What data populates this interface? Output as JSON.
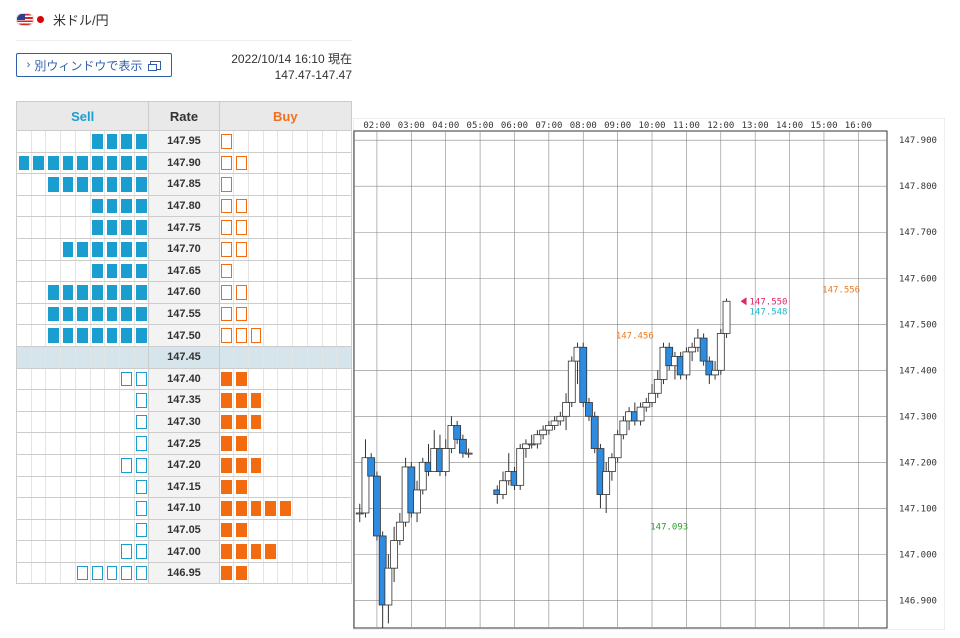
{
  "header": {
    "flag_icons": [
      "us-flag-icon",
      "jp-flag-icon"
    ],
    "title": "米ドル/円"
  },
  "toolbar": {
    "window_button_label": "別ウィンドウで表示",
    "window_button_icons": [
      "chevron-right-icon",
      "new-window-icon"
    ]
  },
  "timestamp": {
    "datetime": "2022/10/14 16:10 現在",
    "range": "147.47-147.47"
  },
  "orderbook": {
    "headers": {
      "sell": "Sell",
      "rate": "Rate",
      "buy": "Buy"
    },
    "colors": {
      "sell": "#1a9dcf",
      "buy": "#f26b10",
      "current_row": "#d6e5ec"
    },
    "current_rate": "147.45",
    "rows": [
      {
        "rate": "147.95",
        "sell_filled": 4,
        "sell_outline": 0,
        "buy_filled": 0,
        "buy_outline": 1
      },
      {
        "rate": "147.90",
        "sell_filled": 9,
        "sell_outline": 0,
        "buy_filled": 0,
        "buy_outline": 2
      },
      {
        "rate": "147.85",
        "sell_filled": 7,
        "sell_outline": 0,
        "buy_filled": 0,
        "buy_outline": 1
      },
      {
        "rate": "147.80",
        "sell_filled": 4,
        "sell_outline": 0,
        "buy_filled": 0,
        "buy_outline": 2
      },
      {
        "rate": "147.75",
        "sell_filled": 4,
        "sell_outline": 0,
        "buy_filled": 0,
        "buy_outline": 2
      },
      {
        "rate": "147.70",
        "sell_filled": 6,
        "sell_outline": 0,
        "buy_filled": 0,
        "buy_outline": 2
      },
      {
        "rate": "147.65",
        "sell_filled": 4,
        "sell_outline": 0,
        "buy_filled": 0,
        "buy_outline": 1
      },
      {
        "rate": "147.60",
        "sell_filled": 7,
        "sell_outline": 0,
        "buy_filled": 0,
        "buy_outline": 2
      },
      {
        "rate": "147.55",
        "sell_filled": 7,
        "sell_outline": 0,
        "buy_filled": 0,
        "buy_outline": 2
      },
      {
        "rate": "147.50",
        "sell_filled": 7,
        "sell_outline": 0,
        "buy_filled": 0,
        "buy_outline": 3
      },
      {
        "rate": "147.45",
        "sell_filled": 0,
        "sell_outline": 0,
        "buy_filled": 0,
        "buy_outline": 0
      },
      {
        "rate": "147.40",
        "sell_filled": 0,
        "sell_outline": 2,
        "buy_filled": 2,
        "buy_outline": 0
      },
      {
        "rate": "147.35",
        "sell_filled": 0,
        "sell_outline": 1,
        "buy_filled": 3,
        "buy_outline": 0
      },
      {
        "rate": "147.30",
        "sell_filled": 0,
        "sell_outline": 1,
        "buy_filled": 3,
        "buy_outline": 0
      },
      {
        "rate": "147.25",
        "sell_filled": 0,
        "sell_outline": 1,
        "buy_filled": 2,
        "buy_outline": 0
      },
      {
        "rate": "147.20",
        "sell_filled": 0,
        "sell_outline": 2,
        "buy_filled": 3,
        "buy_outline": 0
      },
      {
        "rate": "147.15",
        "sell_filled": 0,
        "sell_outline": 1,
        "buy_filled": 2,
        "buy_outline": 0
      },
      {
        "rate": "147.10",
        "sell_filled": 0,
        "sell_outline": 1,
        "buy_filled": 5,
        "buy_outline": 0
      },
      {
        "rate": "147.05",
        "sell_filled": 0,
        "sell_outline": 1,
        "buy_filled": 2,
        "buy_outline": 0
      },
      {
        "rate": "147.00",
        "sell_filled": 0,
        "sell_outline": 2,
        "buy_filled": 4,
        "buy_outline": 0
      },
      {
        "rate": "146.95",
        "sell_filled": 0,
        "sell_outline": 5,
        "buy_filled": 2,
        "buy_outline": 0
      }
    ]
  },
  "chart_data": {
    "type": "candlestick",
    "x_ticks": [
      "02:00",
      "03:00",
      "04:00",
      "05:00",
      "06:00",
      "07:00",
      "08:00",
      "09:00",
      "10:00",
      "11:00",
      "12:00",
      "13:00",
      "14:00",
      "15:00",
      "16:00"
    ],
    "y_ticks": [
      "147.900",
      "147.800",
      "147.700",
      "147.600",
      "147.500",
      "147.400",
      "147.300",
      "147.200",
      "147.100",
      "147.000",
      "146.900"
    ],
    "ylim": [
      146.84,
      147.92
    ],
    "grid": true,
    "colors": {
      "up_body": "#ffffff",
      "down_body": "#2d8be0",
      "wick": "#333333",
      "max_label": "#f07a20",
      "min_label": "#2ca02c",
      "ask_label": "#e0256a",
      "bid_label": "#24b8c8"
    },
    "annotations": [
      {
        "text": "147.456",
        "role": "max",
        "x": "09:30",
        "y": 147.456
      },
      {
        "text": "147.093",
        "role": "min",
        "x": "10:30",
        "y": 147.093
      },
      {
        "text": "147.556",
        "role": "max",
        "x": "15:30",
        "y": 147.556
      }
    ],
    "current_ask": "147.550",
    "current_bid": "147.548",
    "candles": [
      {
        "t": "01:30",
        "o": 147.09,
        "h": 147.11,
        "l": 147.07,
        "c": 147.09
      },
      {
        "t": "01:40",
        "o": 147.09,
        "h": 147.25,
        "l": 147.08,
        "c": 147.21
      },
      {
        "t": "01:50",
        "o": 147.21,
        "h": 147.22,
        "l": 147.17,
        "c": 147.17
      },
      {
        "t": "02:00",
        "o": 147.17,
        "h": 147.18,
        "l": 147.03,
        "c": 147.04
      },
      {
        "t": "02:10",
        "o": 147.04,
        "h": 147.05,
        "l": 146.84,
        "c": 146.89
      },
      {
        "t": "02:20",
        "o": 146.89,
        "h": 147.0,
        "l": 146.85,
        "c": 146.97
      },
      {
        "t": "02:30",
        "o": 146.97,
        "h": 147.06,
        "l": 146.94,
        "c": 147.03
      },
      {
        "t": "02:40",
        "o": 147.03,
        "h": 147.09,
        "l": 147.02,
        "c": 147.07
      },
      {
        "t": "02:50",
        "o": 147.07,
        "h": 147.21,
        "l": 147.06,
        "c": 147.19
      },
      {
        "t": "03:00",
        "o": 147.19,
        "h": 147.2,
        "l": 147.08,
        "c": 147.09
      },
      {
        "t": "03:10",
        "o": 147.09,
        "h": 147.16,
        "l": 147.07,
        "c": 147.14
      },
      {
        "t": "03:20",
        "o": 147.14,
        "h": 147.21,
        "l": 147.13,
        "c": 147.2
      },
      {
        "t": "03:30",
        "o": 147.2,
        "h": 147.24,
        "l": 147.17,
        "c": 147.18
      },
      {
        "t": "03:40",
        "o": 147.18,
        "h": 147.27,
        "l": 147.18,
        "c": 147.23
      },
      {
        "t": "03:50",
        "o": 147.23,
        "h": 147.26,
        "l": 147.17,
        "c": 147.18
      },
      {
        "t": "04:00",
        "o": 147.18,
        "h": 147.25,
        "l": 147.17,
        "c": 147.23
      },
      {
        "t": "04:10",
        "o": 147.23,
        "h": 147.3,
        "l": 147.22,
        "c": 147.28
      },
      {
        "t": "04:20",
        "o": 147.28,
        "h": 147.29,
        "l": 147.24,
        "c": 147.25
      },
      {
        "t": "04:30",
        "o": 147.25,
        "h": 147.26,
        "l": 147.21,
        "c": 147.22
      },
      {
        "t": "04:40",
        "o": 147.22,
        "h": 147.23,
        "l": 147.21,
        "c": 147.22
      },
      {
        "t": "05:30",
        "o": 147.14,
        "h": 147.15,
        "l": 147.11,
        "c": 147.13
      },
      {
        "t": "05:40",
        "o": 147.13,
        "h": 147.18,
        "l": 147.12,
        "c": 147.16
      },
      {
        "t": "05:50",
        "o": 147.16,
        "h": 147.22,
        "l": 147.15,
        "c": 147.18
      },
      {
        "t": "06:00",
        "o": 147.18,
        "h": 147.19,
        "l": 147.14,
        "c": 147.15
      },
      {
        "t": "06:10",
        "o": 147.15,
        "h": 147.24,
        "l": 147.14,
        "c": 147.23
      },
      {
        "t": "06:20",
        "o": 147.23,
        "h": 147.25,
        "l": 147.21,
        "c": 147.24
      },
      {
        "t": "06:30",
        "o": 147.24,
        "h": 147.26,
        "l": 147.23,
        "c": 147.24
      },
      {
        "t": "06:40",
        "o": 147.24,
        "h": 147.27,
        "l": 147.23,
        "c": 147.26
      },
      {
        "t": "06:50",
        "o": 147.26,
        "h": 147.28,
        "l": 147.25,
        "c": 147.27
      },
      {
        "t": "07:00",
        "o": 147.27,
        "h": 147.29,
        "l": 147.26,
        "c": 147.28
      },
      {
        "t": "07:10",
        "o": 147.28,
        "h": 147.3,
        "l": 147.27,
        "c": 147.29
      },
      {
        "t": "07:20",
        "o": 147.29,
        "h": 147.31,
        "l": 147.28,
        "c": 147.3
      },
      {
        "t": "07:30",
        "o": 147.3,
        "h": 147.35,
        "l": 147.27,
        "c": 147.33
      },
      {
        "t": "07:40",
        "o": 147.33,
        "h": 147.43,
        "l": 147.32,
        "c": 147.42
      },
      {
        "t": "07:50",
        "o": 147.42,
        "h": 147.46,
        "l": 147.37,
        "c": 147.45
      },
      {
        "t": "08:00",
        "o": 147.45,
        "h": 147.46,
        "l": 147.32,
        "c": 147.33
      },
      {
        "t": "08:10",
        "o": 147.33,
        "h": 147.34,
        "l": 147.29,
        "c": 147.3
      },
      {
        "t": "08:20",
        "o": 147.3,
        "h": 147.31,
        "l": 147.22,
        "c": 147.23
      },
      {
        "t": "08:30",
        "o": 147.23,
        "h": 147.24,
        "l": 147.1,
        "c": 147.13
      },
      {
        "t": "08:40",
        "o": 147.13,
        "h": 147.2,
        "l": 147.09,
        "c": 147.18
      },
      {
        "t": "08:50",
        "o": 147.18,
        "h": 147.22,
        "l": 147.16,
        "c": 147.21
      },
      {
        "t": "09:00",
        "o": 147.21,
        "h": 147.27,
        "l": 147.2,
        "c": 147.26
      },
      {
        "t": "09:10",
        "o": 147.26,
        "h": 147.3,
        "l": 147.25,
        "c": 147.29
      },
      {
        "t": "09:20",
        "o": 147.29,
        "h": 147.32,
        "l": 147.27,
        "c": 147.31
      },
      {
        "t": "09:30",
        "o": 147.31,
        "h": 147.33,
        "l": 147.28,
        "c": 147.29
      },
      {
        "t": "09:40",
        "o": 147.29,
        "h": 147.33,
        "l": 147.28,
        "c": 147.32
      },
      {
        "t": "09:50",
        "o": 147.32,
        "h": 147.34,
        "l": 147.31,
        "c": 147.33
      },
      {
        "t": "10:00",
        "o": 147.33,
        "h": 147.37,
        "l": 147.32,
        "c": 147.35
      },
      {
        "t": "10:10",
        "o": 147.35,
        "h": 147.4,
        "l": 147.34,
        "c": 147.38
      },
      {
        "t": "10:20",
        "o": 147.38,
        "h": 147.46,
        "l": 147.37,
        "c": 147.45
      },
      {
        "t": "10:30",
        "o": 147.45,
        "h": 147.46,
        "l": 147.4,
        "c": 147.41
      },
      {
        "t": "10:40",
        "o": 147.41,
        "h": 147.44,
        "l": 147.38,
        "c": 147.43
      },
      {
        "t": "10:50",
        "o": 147.43,
        "h": 147.44,
        "l": 147.38,
        "c": 147.39
      },
      {
        "t": "11:00",
        "o": 147.39,
        "h": 147.45,
        "l": 147.38,
        "c": 147.44
      },
      {
        "t": "11:10",
        "o": 147.44,
        "h": 147.46,
        "l": 147.42,
        "c": 147.45
      },
      {
        "t": "11:20",
        "o": 147.45,
        "h": 147.49,
        "l": 147.44,
        "c": 147.47
      },
      {
        "t": "11:30",
        "o": 147.47,
        "h": 147.48,
        "l": 147.41,
        "c": 147.42
      },
      {
        "t": "11:40",
        "o": 147.42,
        "h": 147.43,
        "l": 147.37,
        "c": 147.39
      },
      {
        "t": "11:50",
        "o": 147.39,
        "h": 147.42,
        "l": 147.38,
        "c": 147.4
      },
      {
        "t": "12:00",
        "o": 147.4,
        "h": 147.49,
        "l": 147.39,
        "c": 147.48
      },
      {
        "t": "12:10",
        "o": 147.48,
        "h": 147.556,
        "l": 147.47,
        "c": 147.55
      }
    ]
  }
}
